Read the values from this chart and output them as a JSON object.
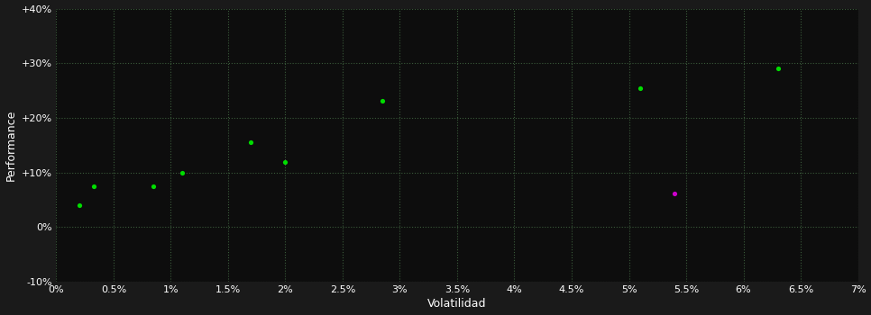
{
  "points_green": [
    [
      0.002,
      0.04
    ],
    [
      0.0033,
      0.075
    ],
    [
      0.0085,
      0.075
    ],
    [
      0.011,
      0.1
    ],
    [
      0.017,
      0.155
    ],
    [
      0.02,
      0.12
    ],
    [
      0.0285,
      0.232
    ],
    [
      0.051,
      0.255
    ],
    [
      0.063,
      0.29
    ]
  ],
  "points_magenta": [
    [
      0.054,
      0.062
    ]
  ],
  "green_color": "#00dd00",
  "magenta_color": "#cc00cc",
  "background_color": "#1a1a1a",
  "plot_bg_color": "#0d0d0d",
  "grid_color": "#3a5a3a",
  "text_color": "#ffffff",
  "xlabel": "Volatilidad",
  "ylabel": "Performance",
  "xlim": [
    0.0,
    0.07
  ],
  "ylim": [
    -0.1,
    0.4
  ],
  "figsize": [
    9.66,
    3.5
  ],
  "dpi": 100
}
